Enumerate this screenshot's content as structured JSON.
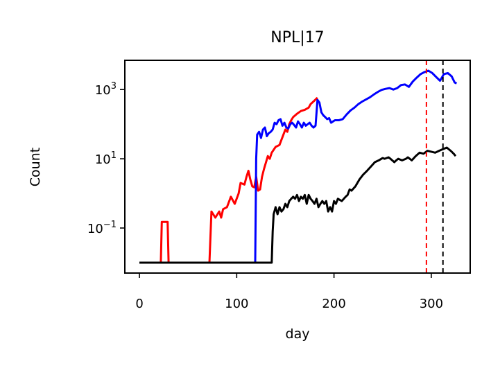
{
  "chart_data": {
    "type": "line",
    "title": "NPL|17",
    "xlabel": "day",
    "ylabel": "Count",
    "xlim": [
      -15,
      340
    ],
    "ylim": [
      0.005,
      7000
    ],
    "yscale": "log",
    "xticks": [
      {
        "value": 0,
        "label": "0"
      },
      {
        "value": 100,
        "label": "100"
      },
      {
        "value": 200,
        "label": "200"
      },
      {
        "value": 300,
        "label": "300"
      }
    ],
    "yticks": [
      {
        "value": 0.1,
        "base": "10",
        "exp": "−1"
      },
      {
        "value": 10,
        "base": "10",
        "exp": "1"
      },
      {
        "value": 1000,
        "base": "10",
        "exp": "3"
      }
    ],
    "grid": false,
    "legend": "none",
    "series": [
      {
        "color": "#ff0000",
        "points": [
          [
            0,
            0.01
          ],
          [
            22,
            0.01
          ],
          [
            23,
            0.15
          ],
          [
            29,
            0.15
          ],
          [
            30,
            0.01
          ],
          [
            72,
            0.01
          ],
          [
            74,
            0.3
          ],
          [
            78,
            0.2
          ],
          [
            82,
            0.3
          ],
          [
            84,
            0.2
          ],
          [
            86,
            0.35
          ],
          [
            90,
            0.4
          ],
          [
            94,
            0.8
          ],
          [
            98,
            0.5
          ],
          [
            102,
            1.0
          ],
          [
            104,
            2.0
          ],
          [
            108,
            1.8
          ],
          [
            110,
            3.0
          ],
          [
            112,
            4.5
          ],
          [
            114,
            2.5
          ],
          [
            116,
            1.6
          ],
          [
            118,
            1.5
          ],
          [
            120,
            3.0
          ],
          [
            122,
            1.2
          ],
          [
            124,
            1.3
          ],
          [
            126,
            3.0
          ],
          [
            128,
            5.0
          ],
          [
            132,
            12
          ],
          [
            134,
            10
          ],
          [
            136,
            15
          ],
          [
            140,
            22
          ],
          [
            144,
            25
          ],
          [
            148,
            50
          ],
          [
            150,
            70
          ],
          [
            152,
            60
          ],
          [
            154,
            100
          ],
          [
            156,
            130
          ],
          [
            158,
            160
          ],
          [
            162,
            200
          ],
          [
            166,
            240
          ],
          [
            170,
            260
          ],
          [
            174,
            300
          ],
          [
            176,
            380
          ],
          [
            180,
            480
          ],
          [
            182,
            550
          ],
          [
            183,
            580
          ]
        ]
      },
      {
        "color": "#0000ff",
        "points": [
          [
            0,
            0.01
          ],
          [
            119,
            0.01
          ],
          [
            120,
            10
          ],
          [
            121,
            50
          ],
          [
            123,
            60
          ],
          [
            125,
            40
          ],
          [
            127,
            70
          ],
          [
            129,
            80
          ],
          [
            131,
            45
          ],
          [
            133,
            55
          ],
          [
            135,
            60
          ],
          [
            137,
            70
          ],
          [
            139,
            110
          ],
          [
            141,
            100
          ],
          [
            143,
            130
          ],
          [
            145,
            140
          ],
          [
            147,
            90
          ],
          [
            149,
            110
          ],
          [
            151,
            80
          ],
          [
            153,
            75
          ],
          [
            155,
            100
          ],
          [
            157,
            110
          ],
          [
            159,
            95
          ],
          [
            161,
            80
          ],
          [
            163,
            120
          ],
          [
            165,
            100
          ],
          [
            167,
            80
          ],
          [
            169,
            110
          ],
          [
            171,
            90
          ],
          [
            173,
            100
          ],
          [
            175,
            110
          ],
          [
            177,
            90
          ],
          [
            179,
            80
          ],
          [
            181,
            90
          ],
          [
            183,
            500
          ],
          [
            185,
            420
          ],
          [
            187,
            220
          ],
          [
            189,
            180
          ],
          [
            191,
            160
          ],
          [
            193,
            140
          ],
          [
            195,
            150
          ],
          [
            197,
            110
          ],
          [
            199,
            120
          ],
          [
            201,
            130
          ],
          [
            205,
            130
          ],
          [
            209,
            140
          ],
          [
            213,
            190
          ],
          [
            217,
            250
          ],
          [
            221,
            300
          ],
          [
            225,
            380
          ],
          [
            229,
            450
          ],
          [
            233,
            520
          ],
          [
            237,
            600
          ],
          [
            241,
            720
          ],
          [
            245,
            850
          ],
          [
            249,
            980
          ],
          [
            253,
            1050
          ],
          [
            257,
            1100
          ],
          [
            261,
            1000
          ],
          [
            265,
            1100
          ],
          [
            269,
            1350
          ],
          [
            273,
            1400
          ],
          [
            277,
            1200
          ],
          [
            281,
            1700
          ],
          [
            285,
            2200
          ],
          [
            289,
            2800
          ],
          [
            293,
            3200
          ],
          [
            297,
            3500
          ],
          [
            301,
            3000
          ],
          [
            305,
            2300
          ],
          [
            309,
            1800
          ],
          [
            313,
            2800
          ],
          [
            317,
            3000
          ],
          [
            321,
            2400
          ],
          [
            324,
            1600
          ],
          [
            326,
            1500
          ]
        ]
      },
      {
        "color": "#000000",
        "points": [
          [
            0,
            0.01
          ],
          [
            134,
            0.01
          ],
          [
            136,
            0.01
          ],
          [
            137,
            0.08
          ],
          [
            138,
            0.25
          ],
          [
            140,
            0.4
          ],
          [
            142,
            0.25
          ],
          [
            144,
            0.4
          ],
          [
            146,
            0.3
          ],
          [
            148,
            0.35
          ],
          [
            150,
            0.5
          ],
          [
            152,
            0.4
          ],
          [
            154,
            0.6
          ],
          [
            156,
            0.7
          ],
          [
            158,
            0.8
          ],
          [
            160,
            0.7
          ],
          [
            162,
            0.9
          ],
          [
            164,
            0.6
          ],
          [
            166,
            0.8
          ],
          [
            168,
            0.7
          ],
          [
            170,
            0.9
          ],
          [
            172,
            0.5
          ],
          [
            174,
            0.9
          ],
          [
            176,
            0.7
          ],
          [
            178,
            0.6
          ],
          [
            180,
            0.5
          ],
          [
            182,
            0.7
          ],
          [
            184,
            0.4
          ],
          [
            186,
            0.5
          ],
          [
            188,
            0.6
          ],
          [
            190,
            0.5
          ],
          [
            192,
            0.6
          ],
          [
            194,
            0.3
          ],
          [
            196,
            0.4
          ],
          [
            198,
            0.3
          ],
          [
            200,
            0.6
          ],
          [
            202,
            0.5
          ],
          [
            204,
            0.7
          ],
          [
            208,
            0.6
          ],
          [
            212,
            0.8
          ],
          [
            214,
            0.9
          ],
          [
            216,
            1.3
          ],
          [
            218,
            1.2
          ],
          [
            222,
            1.6
          ],
          [
            226,
            2.5
          ],
          [
            230,
            3.5
          ],
          [
            234,
            4.5
          ],
          [
            238,
            6
          ],
          [
            242,
            8
          ],
          [
            246,
            9
          ],
          [
            250,
            10.5
          ],
          [
            252,
            10
          ],
          [
            256,
            11
          ],
          [
            258,
            10
          ],
          [
            262,
            8
          ],
          [
            264,
            9
          ],
          [
            266,
            10
          ],
          [
            270,
            9
          ],
          [
            274,
            10
          ],
          [
            276,
            11
          ],
          [
            280,
            9
          ],
          [
            284,
            12
          ],
          [
            288,
            15
          ],
          [
            292,
            14
          ],
          [
            296,
            17
          ],
          [
            300,
            16
          ],
          [
            304,
            15
          ],
          [
            308,
            17
          ],
          [
            312,
            19
          ],
          [
            316,
            21
          ],
          [
            320,
            17
          ],
          [
            323,
            14
          ],
          [
            325,
            12
          ]
        ]
      }
    ],
    "vlines": [
      {
        "x": 295,
        "color": "#ff0000",
        "style": "dashed"
      },
      {
        "x": 312,
        "color": "#000000",
        "style": "dashed"
      }
    ]
  }
}
